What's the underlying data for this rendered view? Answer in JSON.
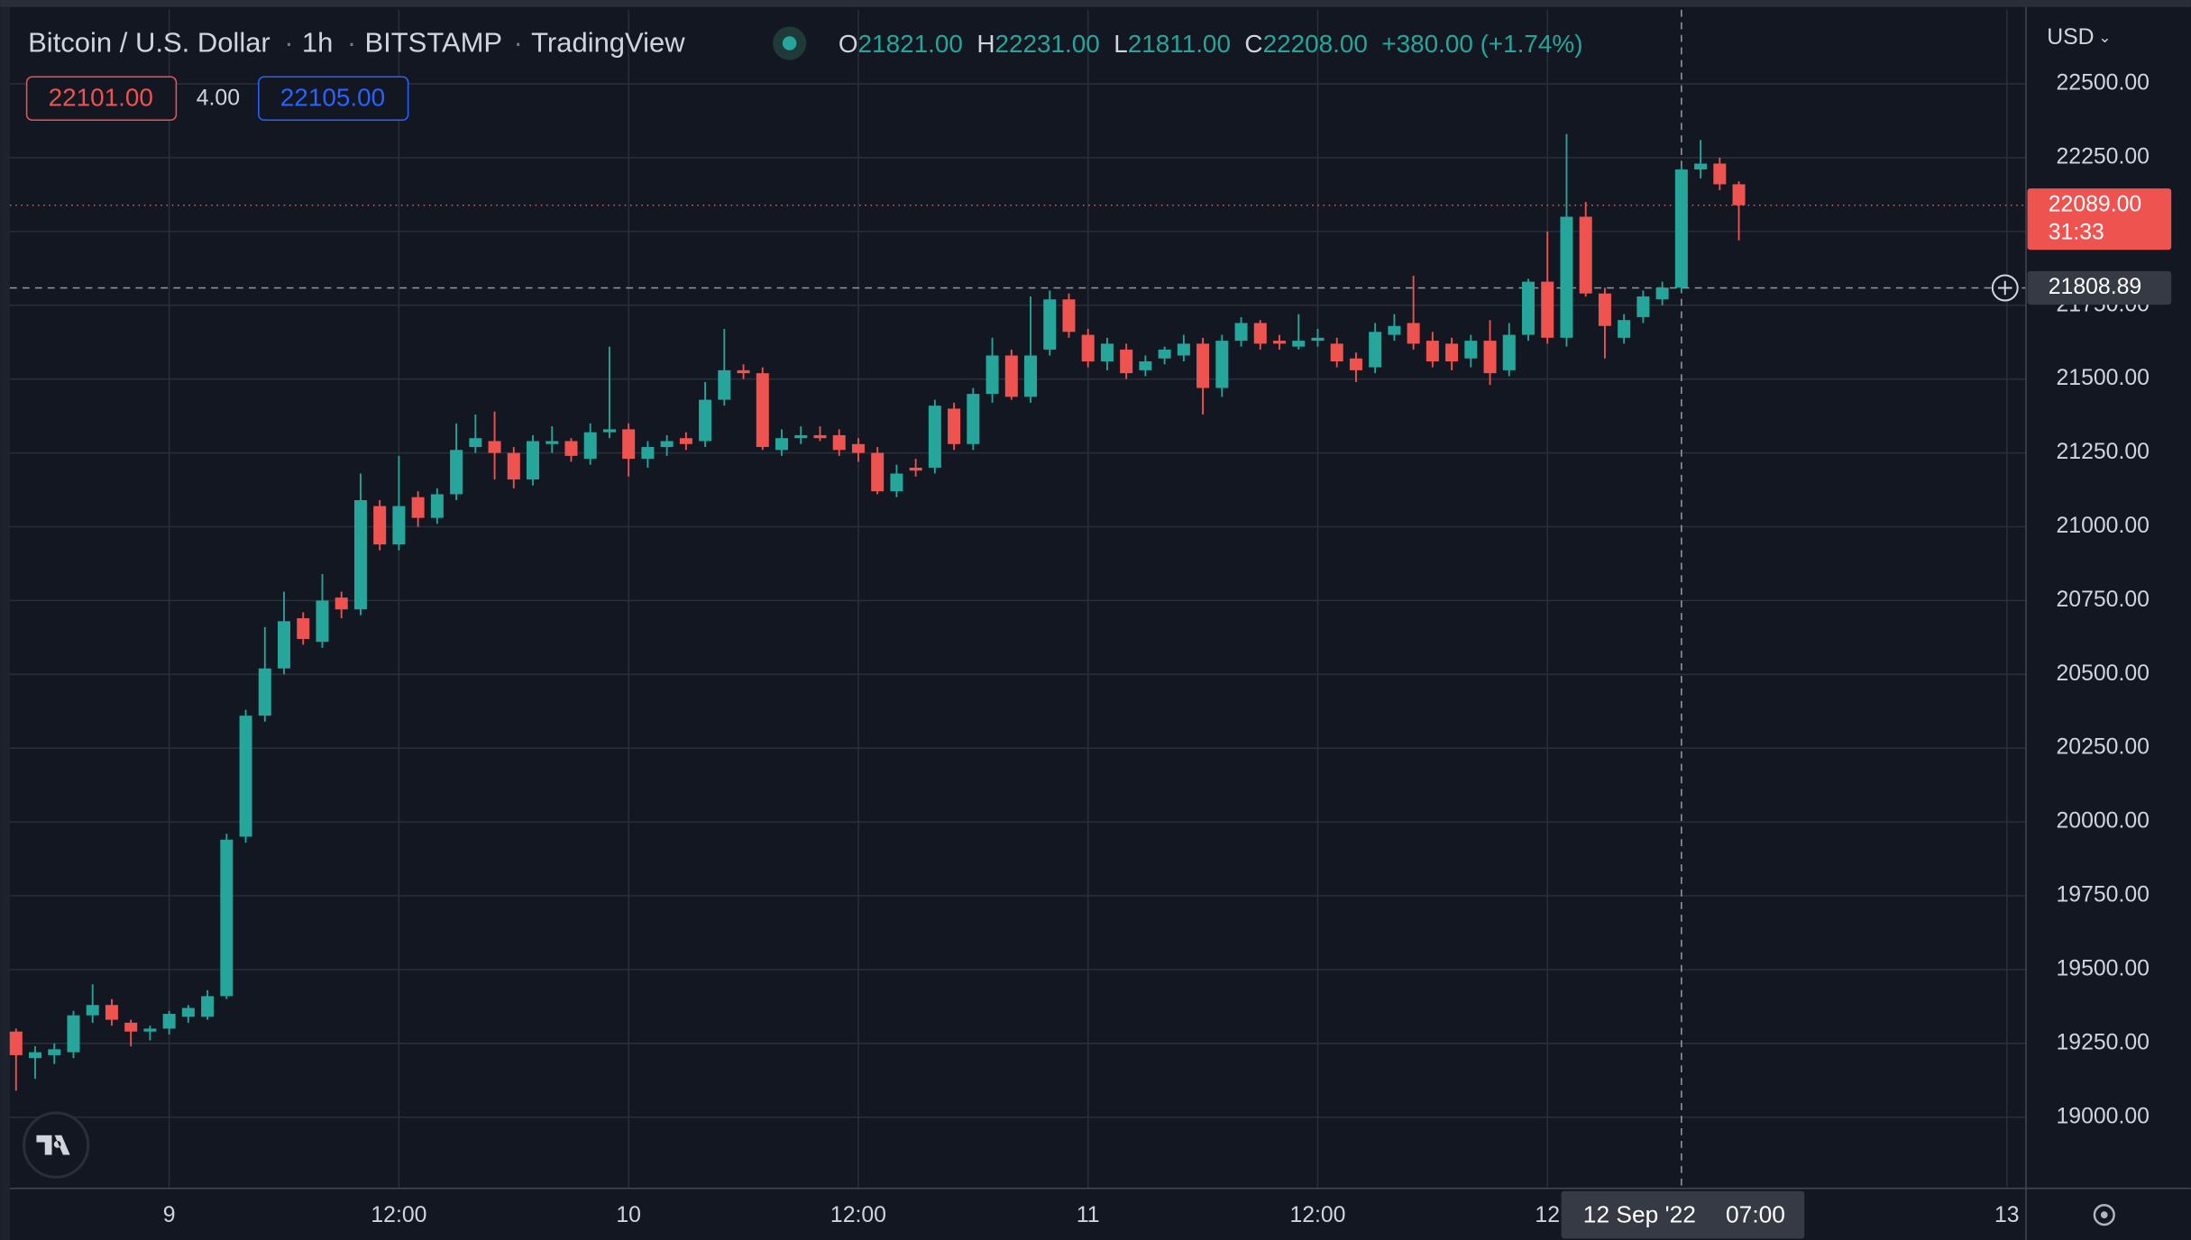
{
  "chart_data": {
    "type": "candlestick",
    "header": {
      "symbol": "Bitcoin / U.S. Dollar",
      "interval": "1h",
      "exchange": "BITSTAMP",
      "source": "TradingView",
      "ohlc": [
        {
          "key": "O",
          "value": "21821.00"
        },
        {
          "key": "H",
          "value": "22231.00"
        },
        {
          "key": "L",
          "value": "21811.00"
        },
        {
          "key": "C",
          "value": "22208.00"
        }
      ],
      "change": "+380.00 (+1.74%)"
    },
    "order_panel": {
      "sell": "22101.00",
      "spread": "4.00",
      "buy": "22105.00"
    },
    "currency": "USD",
    "up_color": "#26a69a",
    "down_color": "#ef5350",
    "grid": true,
    "ylim": [
      18759,
      22751
    ],
    "xlim": [
      -0.32,
      105.0
    ],
    "yticks": [
      {
        "value": 19000,
        "label": "19000.00"
      },
      {
        "value": 19250,
        "label": "19250.00"
      },
      {
        "value": 19500,
        "label": "19500.00"
      },
      {
        "value": 19750,
        "label": "19750.00"
      },
      {
        "value": 20000,
        "label": "20000.00"
      },
      {
        "value": 20250,
        "label": "20250.00"
      },
      {
        "value": 20500,
        "label": "20500.00"
      },
      {
        "value": 20750,
        "label": "20750.00"
      },
      {
        "value": 21000,
        "label": "21000.00"
      },
      {
        "value": 21250,
        "label": "21250.00"
      },
      {
        "value": 21500,
        "label": "21500.00"
      },
      {
        "value": 21750,
        "label": "21750.00"
      },
      {
        "value": 22000,
        "label": "22000.00"
      },
      {
        "value": 22250,
        "label": "22250.00"
      },
      {
        "value": 22500,
        "label": "22500.00"
      }
    ],
    "xticks": [
      {
        "value": 8,
        "label": "9"
      },
      {
        "value": 20,
        "label": "12:00"
      },
      {
        "value": 32,
        "label": "10"
      },
      {
        "value": 44,
        "label": "12:00"
      },
      {
        "value": 56,
        "label": "11"
      },
      {
        "value": 68,
        "label": "12:00"
      },
      {
        "value": 80,
        "label": "12"
      },
      {
        "value": 104,
        "label": "13"
      }
    ],
    "candles": {
      "open": [
        19290,
        19200,
        19210,
        19220,
        19345,
        19380,
        19320,
        19290,
        19300,
        19340,
        19340,
        19410,
        19950,
        20360,
        20520,
        20690,
        20610,
        20760,
        20720,
        21070,
        20940,
        21100,
        21030,
        21110,
        21270,
        21290,
        21250,
        21160,
        21280,
        21290,
        21230,
        21320,
        21330,
        21230,
        21270,
        21300,
        21290,
        21430,
        21530,
        21520,
        21260,
        21300,
        21310,
        21310,
        21280,
        21250,
        21120,
        21200,
        21200,
        21400,
        21280,
        21450,
        21580,
        21440,
        21600,
        21770,
        21650,
        21560,
        21600,
        21530,
        21570,
        21580,
        21620,
        21470,
        21630,
        21690,
        21630,
        21610,
        21630,
        21620,
        21570,
        21540,
        21650,
        21690,
        21630,
        21620,
        21570,
        21630,
        21530,
        21650,
        21830,
        21640,
        22050,
        21790,
        21640,
        21710,
        21770,
        21810,
        22210,
        22230,
        22160
      ],
      "high": [
        19300,
        19240,
        19250,
        19360,
        19450,
        19400,
        19330,
        19310,
        19360,
        19380,
        19430,
        19960,
        20380,
        20660,
        20780,
        20710,
        20840,
        20780,
        21180,
        21090,
        21240,
        21120,
        21130,
        21350,
        21380,
        21390,
        21270,
        21310,
        21340,
        21300,
        21350,
        21610,
        21350,
        21290,
        21310,
        21320,
        21490,
        21670,
        21550,
        21540,
        21330,
        21340,
        21340,
        21330,
        21300,
        21270,
        21210,
        21230,
        21430,
        21420,
        21470,
        21640,
        21600,
        21780,
        21800,
        21790,
        21670,
        21640,
        21620,
        21580,
        21610,
        21650,
        21640,
        21650,
        21710,
        21700,
        21650,
        21720,
        21670,
        21640,
        21590,
        21690,
        21720,
        21850,
        21660,
        21640,
        21650,
        21700,
        21690,
        21840,
        22000,
        22330,
        22100,
        21810,
        21720,
        21800,
        21830,
        22220,
        22310,
        22250,
        22170
      ],
      "low": [
        19090,
        19130,
        19180,
        19200,
        19320,
        19310,
        19240,
        19260,
        19280,
        19320,
        19330,
        19400,
        19930,
        20340,
        20500,
        20600,
        20590,
        20690,
        20700,
        20920,
        20920,
        21000,
        21010,
        21090,
        21250,
        21160,
        21130,
        21140,
        21250,
        21220,
        21210,
        21300,
        21170,
        21200,
        21240,
        21260,
        21270,
        21410,
        21500,
        21260,
        21240,
        21280,
        21290,
        21240,
        21220,
        21110,
        21100,
        21170,
        21180,
        21260,
        21260,
        21420,
        21430,
        21420,
        21580,
        21640,
        21540,
        21530,
        21500,
        21510,
        21550,
        21560,
        21380,
        21440,
        21610,
        21600,
        21600,
        21600,
        21610,
        21540,
        21490,
        21520,
        21630,
        21600,
        21540,
        21530,
        21540,
        21480,
        21510,
        21630,
        21620,
        21610,
        21780,
        21570,
        21620,
        21690,
        21750,
        21800,
        22180,
        22140,
        21970
      ],
      "close": [
        19210,
        19220,
        19230,
        19345,
        19380,
        19330,
        19290,
        19300,
        19350,
        19370,
        19410,
        19940,
        20360,
        20520,
        20680,
        20620,
        20750,
        20720,
        21090,
        20940,
        21070,
        21030,
        21110,
        21260,
        21300,
        21250,
        21160,
        21290,
        21290,
        21240,
        21320,
        21330,
        21230,
        21270,
        21290,
        21280,
        21430,
        21530,
        21520,
        21270,
        21300,
        21310,
        21300,
        21260,
        21250,
        21120,
        21180,
        21190,
        21410,
        21280,
        21450,
        21580,
        21440,
        21580,
        21770,
        21660,
        21560,
        21620,
        21520,
        21560,
        21600,
        21620,
        21470,
        21630,
        21690,
        21620,
        21620,
        21630,
        21640,
        21560,
        21530,
        21660,
        21680,
        21620,
        21560,
        21560,
        21630,
        21520,
        21650,
        21830,
        21640,
        22050,
        21790,
        21680,
        21700,
        21780,
        21810,
        22210,
        22230,
        22160,
        22089
      ]
    },
    "last_price": {
      "value": 22089,
      "label": "22089.00",
      "countdown": "31:33"
    },
    "crosshair": {
      "x": 87,
      "y": 21808.89,
      "y_label": "21808.89",
      "date_label": "12 Sep '22",
      "time_label": "07:00"
    }
  }
}
